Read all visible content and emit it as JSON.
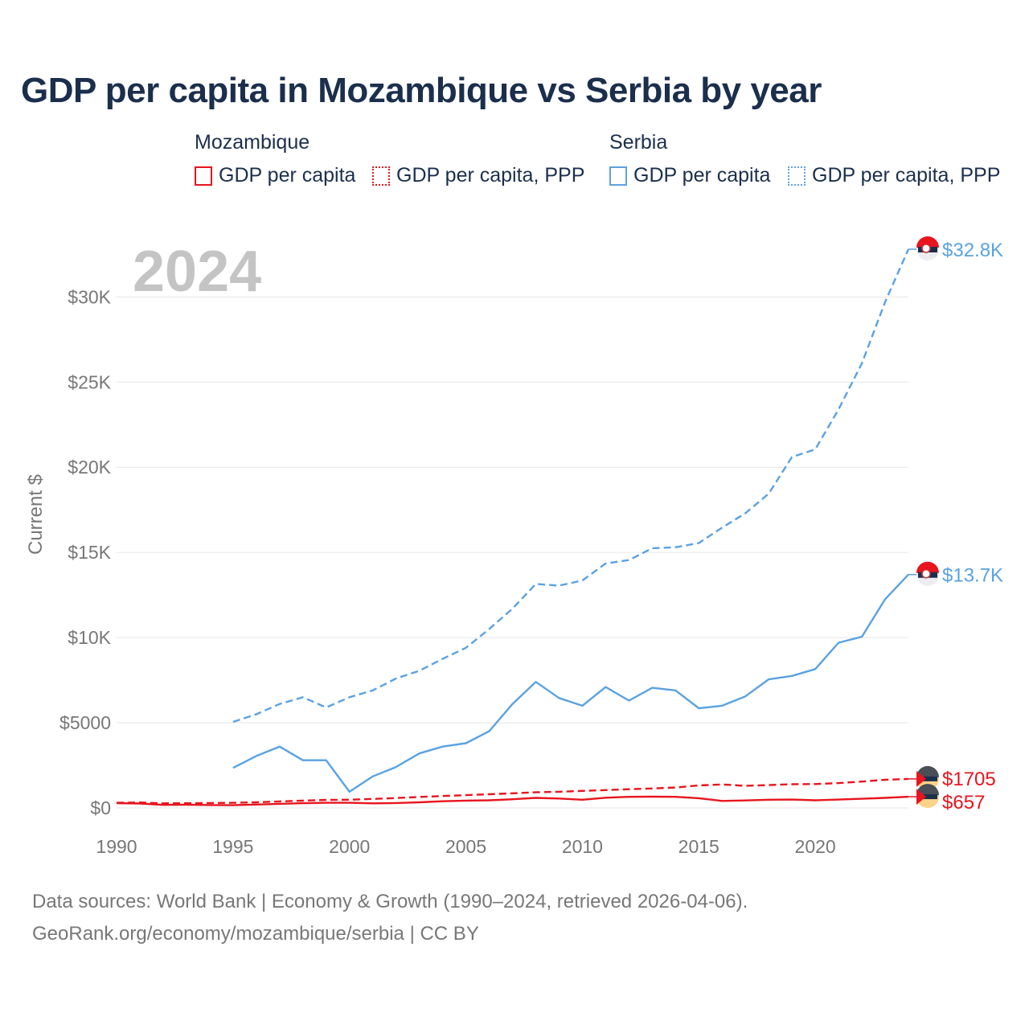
{
  "title": "GDP per capita in Mozambique vs Serbia by year",
  "legend": {
    "groups": [
      {
        "name": "Mozambique",
        "color": "#e8141e",
        "items": [
          {
            "label": "GDP per capita",
            "style": "solid"
          },
          {
            "label": "GDP per capita, PPP",
            "style": "dotted"
          }
        ]
      },
      {
        "name": "Serbia",
        "color": "#5aa2e2",
        "items": [
          {
            "label": "GDP per capita",
            "style": "solid"
          },
          {
            "label": "GDP per capita, PPP",
            "style": "dotted"
          }
        ]
      }
    ]
  },
  "year_label": "2024",
  "source": {
    "line1": "Data sources: World Bank | Economy & Growth (1990–2024, retrieved 2026-04-06).",
    "line2": "GeoRank.org/economy/mozambique/serbia | CC BY"
  },
  "chart_data": {
    "type": "line",
    "title": "GDP per capita in Mozambique vs Serbia by year",
    "xlabel": "",
    "ylabel": "Current $",
    "xlim": [
      1990,
      2024
    ],
    "ylim": [
      0,
      32800
    ],
    "x_ticks": [
      1990,
      1995,
      2000,
      2005,
      2010,
      2015,
      2020
    ],
    "x_tick_labels": [
      "1990",
      "1995",
      "2000",
      "2005",
      "2010",
      "2015",
      "2020"
    ],
    "y_ticks": [
      0,
      5000,
      10000,
      15000,
      20000,
      25000,
      30000
    ],
    "y_tick_labels": [
      "$0",
      "$5000",
      "$10K",
      "$15K",
      "$20K",
      "$25K",
      "$30K"
    ],
    "grid": true,
    "series": [
      {
        "name": "Serbia GDP per capita, PPP",
        "country": "Serbia",
        "color": "#5aa2e2",
        "dash": true,
        "end_label": "$32.8K",
        "x": [
          1995,
          1996,
          1997,
          1998,
          1999,
          2000,
          2001,
          2002,
          2003,
          2004,
          2005,
          2006,
          2007,
          2008,
          2009,
          2010,
          2011,
          2012,
          2013,
          2014,
          2015,
          2016,
          2017,
          2018,
          2019,
          2020,
          2021,
          2022,
          2023,
          2024
        ],
        "values": [
          5050,
          5500,
          6100,
          6500,
          5900,
          6500,
          6900,
          7600,
          8050,
          8750,
          9400,
          10500,
          11700,
          13150,
          13050,
          13350,
          14350,
          14550,
          15250,
          15300,
          15550,
          16450,
          17300,
          18450,
          20600,
          21050,
          23400,
          26100,
          29700,
          32800
        ]
      },
      {
        "name": "Serbia GDP per capita",
        "country": "Serbia",
        "color": "#5aa2e2",
        "dash": false,
        "end_label": "$13.7K",
        "x": [
          1995,
          1996,
          1997,
          1998,
          1999,
          2000,
          2001,
          2002,
          2003,
          2004,
          2005,
          2006,
          2007,
          2008,
          2009,
          2010,
          2011,
          2012,
          2013,
          2014,
          2015,
          2016,
          2017,
          2018,
          2019,
          2020,
          2021,
          2022,
          2023,
          2024
        ],
        "values": [
          2350,
          3050,
          3600,
          2800,
          2800,
          950,
          1850,
          2400,
          3200,
          3600,
          3800,
          4500,
          6100,
          7400,
          6450,
          6000,
          7100,
          6300,
          7050,
          6900,
          5850,
          6000,
          6550,
          7550,
          7750,
          8150,
          9700,
          10050,
          12250,
          13700
        ]
      },
      {
        "name": "Mozambique GDP per capita, PPP",
        "country": "Mozambique",
        "color": "#e8141e",
        "dash": true,
        "end_label": "$1705",
        "x": [
          1990,
          1991,
          1992,
          1993,
          1994,
          1995,
          1996,
          1997,
          1998,
          1999,
          2000,
          2001,
          2002,
          2003,
          2004,
          2005,
          2006,
          2007,
          2008,
          2009,
          2010,
          2011,
          2012,
          2013,
          2014,
          2015,
          2016,
          2017,
          2018,
          2019,
          2020,
          2021,
          2022,
          2023,
          2024
        ],
        "values": [
          300,
          320,
          270,
          280,
          290,
          300,
          330,
          380,
          430,
          470,
          480,
          530,
          580,
          640,
          700,
          750,
          800,
          860,
          920,
          950,
          1000,
          1050,
          1100,
          1140,
          1200,
          1320,
          1380,
          1300,
          1340,
          1390,
          1400,
          1460,
          1550,
          1650,
          1705
        ]
      },
      {
        "name": "Mozambique GDP per capita",
        "country": "Mozambique",
        "color": "#e8141e",
        "dash": false,
        "end_label": "$657",
        "x": [
          1990,
          1991,
          1992,
          1993,
          1994,
          1995,
          1996,
          1997,
          1998,
          1999,
          2000,
          2001,
          2002,
          2003,
          2004,
          2005,
          2006,
          2007,
          2008,
          2009,
          2010,
          2011,
          2012,
          2013,
          2014,
          2015,
          2016,
          2017,
          2018,
          2019,
          2020,
          2021,
          2022,
          2023,
          2024
        ],
        "values": [
          280,
          260,
          180,
          190,
          170,
          160,
          200,
          240,
          280,
          300,
          300,
          270,
          290,
          330,
          390,
          430,
          450,
          510,
          590,
          550,
          480,
          600,
          650,
          660,
          650,
          570,
          410,
          440,
          480,
          490,
          450,
          490,
          540,
          590,
          657
        ]
      }
    ]
  }
}
